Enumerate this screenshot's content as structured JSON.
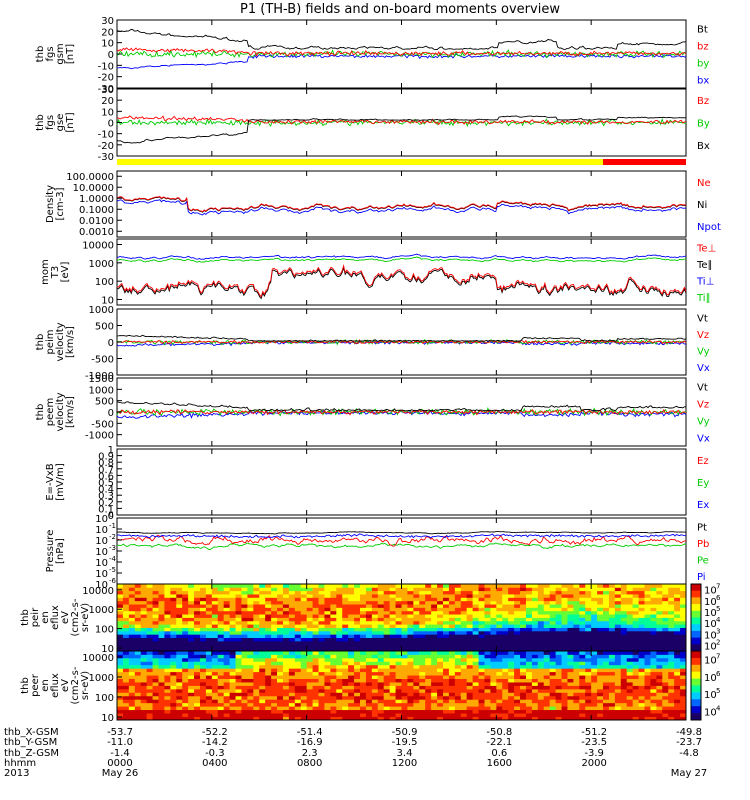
{
  "chart_data": {
    "type": "line",
    "title": "P1 (TH-B) fields and on-board moments overview",
    "time_axis": {
      "start": "2013-05-26 00:00",
      "end": "2013-05-27 00:00",
      "hours": [
        0,
        4,
        8,
        12,
        16,
        20,
        24
      ],
      "tick_labels": [
        "0000",
        "0400",
        "0800",
        "1200",
        "1600",
        "2000",
        ""
      ],
      "date_labels": [
        "May 26",
        "",
        "",
        "",
        "",
        "",
        "May 27"
      ]
    },
    "ephemeris": {
      "row_labels": [
        "thb_X-GSM",
        "thb_Y-GSM",
        "thb_Z-GSM",
        "hhmm",
        "2013"
      ],
      "X": [
        "-53.7",
        "-52.2",
        "-51.4",
        "-50.9",
        "-50.8",
        "-51.2",
        "-49.8"
      ],
      "Y": [
        "-11.0",
        "-14.2",
        "-16.9",
        "-19.5",
        "-22.1",
        "-23.5",
        "-23.7"
      ],
      "Z": [
        "-1.4",
        "-0.3",
        "2.3",
        "3.4",
        "0.6",
        "-3.9",
        "-4.8"
      ]
    },
    "panels": [
      {
        "id": "fgs_gsm",
        "ylabel": [
          "thb",
          "fgs",
          "gsm",
          "[nT]"
        ],
        "scale": "linear",
        "ylim": [
          -30,
          30
        ],
        "ticks": [
          -30,
          -20,
          -10,
          0,
          10,
          20,
          30
        ],
        "series": [
          {
            "name": "Bt",
            "color": "#000000"
          },
          {
            "name": "bz",
            "color": "#ff0000"
          },
          {
            "name": "by",
            "color": "#00cc00"
          },
          {
            "name": "bx",
            "color": "#0000ff"
          }
        ]
      },
      {
        "id": "fgs_gse",
        "ylabel": [
          "thb",
          "fgs",
          "gse",
          "[nT]"
        ],
        "scale": "linear",
        "ylim": [
          -30,
          30
        ],
        "ticks": [
          -30,
          -20,
          -10,
          0,
          10,
          20,
          30
        ],
        "series": [
          {
            "name": "Bz",
            "color": "#ff0000"
          },
          {
            "name": "By",
            "color": "#00cc00"
          },
          {
            "name": "Bx",
            "color": "#000000"
          }
        ]
      },
      {
        "id": "mode_bar",
        "segments": [
          {
            "from": 0,
            "to": 20.5,
            "color": "#ffff00"
          },
          {
            "from": 20.5,
            "to": 24,
            "color": "#ff0000"
          }
        ]
      },
      {
        "id": "density",
        "ylabel": [
          "Density",
          "[cm-3]"
        ],
        "scale": "log",
        "ylim": [
          0.0003,
          300
        ],
        "ticks": [
          0.001,
          0.01,
          0.1,
          1,
          10,
          100
        ],
        "tick_labels": [
          "0.0010",
          "0.0100",
          "0.1000",
          "1.0000",
          "10.0000",
          "100.0000"
        ],
        "series": [
          {
            "name": "Ne",
            "color": "#ff0000"
          },
          {
            "name": "Ni",
            "color": "#000000"
          },
          {
            "name": "Npot",
            "color": "#0000ff"
          }
        ]
      },
      {
        "id": "temperature",
        "ylabel": [
          "mom",
          "T3",
          "[eV]"
        ],
        "scale": "log",
        "ylim": [
          5,
          20000
        ],
        "ticks": [
          10,
          100,
          1000,
          10000
        ],
        "tick_labels": [
          "10",
          "100",
          "1000",
          "10000"
        ],
        "series": [
          {
            "name": "Te⊥",
            "color": "#ff0000"
          },
          {
            "name": "Te∥",
            "color": "#000000"
          },
          {
            "name": "Ti⊥",
            "color": "#0000ff"
          },
          {
            "name": "Ti∥",
            "color": "#00cc00"
          }
        ]
      },
      {
        "id": "peim_velocity",
        "ylabel": [
          "thb",
          "peim",
          "velocity",
          "[km/s]"
        ],
        "scale": "linear",
        "ylim": [
          -1000,
          1000
        ],
        "ticks": [
          -1000,
          -500,
          0,
          500,
          1000
        ],
        "series": [
          {
            "name": "Vt",
            "color": "#000000"
          },
          {
            "name": "Vz",
            "color": "#ff0000"
          },
          {
            "name": "Vy",
            "color": "#00cc00"
          },
          {
            "name": "Vx",
            "color": "#0000ff"
          }
        ]
      },
      {
        "id": "peem_velocity",
        "ylabel": [
          "thb",
          "peem",
          "velocity",
          "[km/s]"
        ],
        "scale": "linear",
        "ylim": [
          -1500,
          1500
        ],
        "ticks": [
          -1000,
          -500,
          0,
          500,
          1000,
          1500
        ],
        "series": [
          {
            "name": "Vt",
            "color": "#000000"
          },
          {
            "name": "Vz",
            "color": "#ff0000"
          },
          {
            "name": "Vy",
            "color": "#00cc00"
          },
          {
            "name": "Vx",
            "color": "#0000ff"
          }
        ]
      },
      {
        "id": "efield",
        "ylabel": [
          "E=-VxB",
          "[mV/m]"
        ],
        "scale": "linear",
        "ylim": [
          0,
          1
        ],
        "ticks": [
          0,
          0.1,
          0.2,
          0.3,
          0.4,
          0.5,
          0.6,
          0.7,
          0.8,
          0.9,
          1.0
        ],
        "series": [
          {
            "name": "Ez",
            "color": "#ff0000"
          },
          {
            "name": "Ey",
            "color": "#00cc00"
          },
          {
            "name": "Ex",
            "color": "#0000ff"
          }
        ]
      },
      {
        "id": "pressure",
        "ylabel": [
          "Pressure",
          "[nPa]"
        ],
        "scale": "log",
        "ylim": [
          1e-06,
          1
        ],
        "tick_exponents": [
          -6,
          -5,
          -4,
          -3,
          -2,
          -1,
          0
        ],
        "series": [
          {
            "name": "Pt",
            "color": "#000000"
          },
          {
            "name": "Pb",
            "color": "#ff0000"
          },
          {
            "name": "Pe",
            "color": "#00cc00"
          },
          {
            "name": "Pi",
            "color": "#0000ff"
          }
        ]
      },
      {
        "id": "peir_spec",
        "ylabel": [
          "thb",
          "peir",
          "en",
          "eflux",
          "eV",
          "(cm2-s-",
          "sr-eV)"
        ],
        "scale": "log",
        "ylim": [
          7,
          20000
        ],
        "ticks": [
          10,
          100,
          1000,
          10000
        ],
        "tick_labels": [
          "10",
          "100",
          "1000",
          "10000"
        ],
        "colorbar_exponents": [
          2,
          3,
          4,
          5,
          6,
          7
        ]
      },
      {
        "id": "peer_spec",
        "ylabel": [
          "thb",
          "peer",
          "en",
          "eflux",
          "eV",
          "(cm2-s-",
          "sr-eV)"
        ],
        "scale": "log",
        "ylim": [
          7,
          20000
        ],
        "ticks": [
          10,
          100,
          1000,
          10000
        ],
        "tick_labels": [
          "10",
          "100",
          "1000",
          "10000"
        ],
        "colorbar_exponents": [
          4,
          5,
          6,
          7
        ]
      }
    ]
  }
}
